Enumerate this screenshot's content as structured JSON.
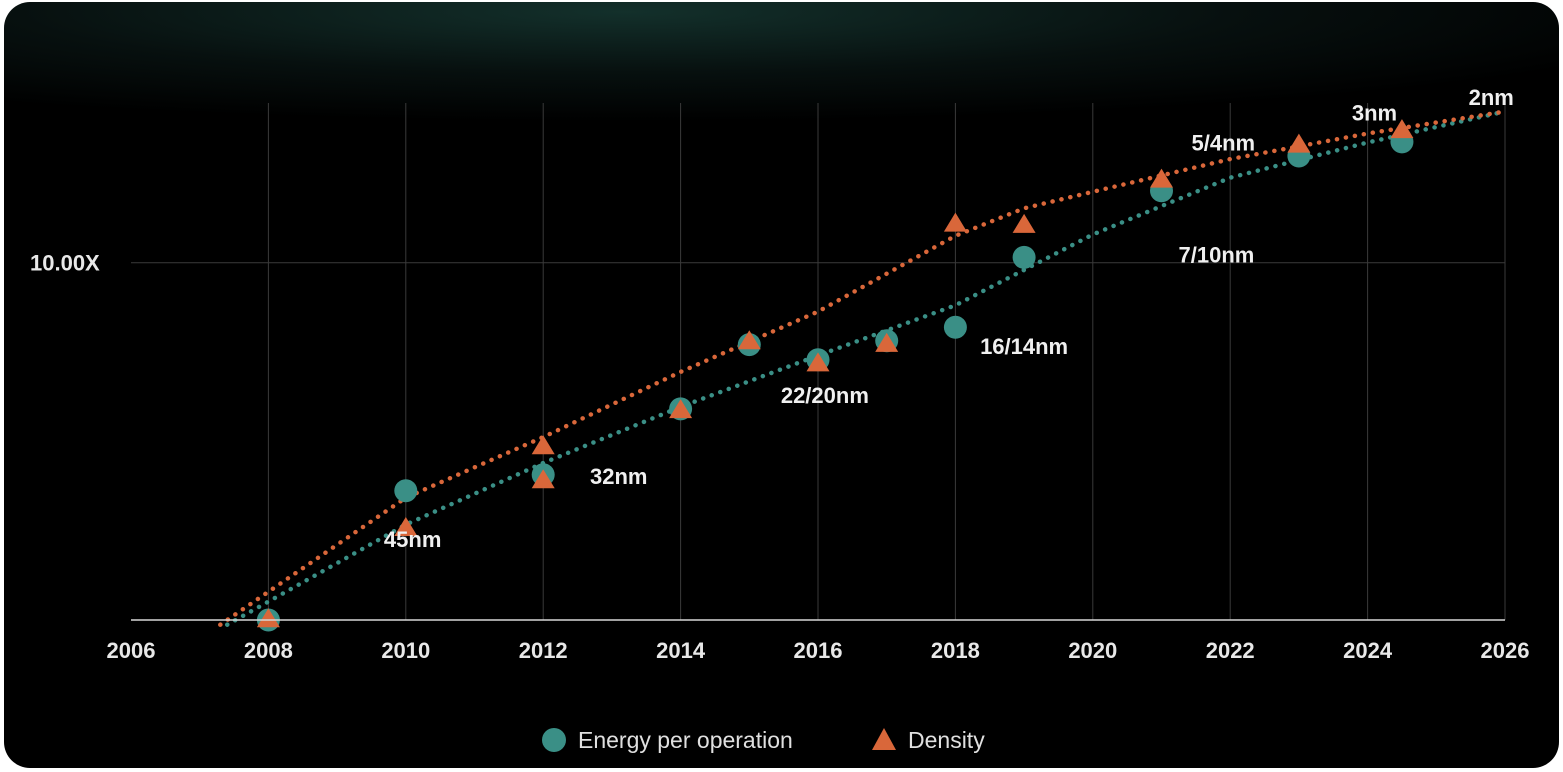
{
  "chart_data": {
    "type": "scatter",
    "xlim": [
      2006,
      2026
    ],
    "x_ticks": [
      2006,
      2008,
      2010,
      2012,
      2014,
      2016,
      2018,
      2020,
      2022,
      2024,
      2026
    ],
    "y_scale": "log",
    "ylim": [
      1,
      28
    ],
    "y_tick_labels": [
      {
        "value": 10,
        "label": "10.00X"
      }
    ],
    "grid": true,
    "legend_position": "bottom-center",
    "colors": {
      "energy": "#3a8f86",
      "density": "#d9673a"
    },
    "series": [
      {
        "name": "Energy per operation",
        "marker": "circle",
        "points": [
          [
            2008,
            1.0
          ],
          [
            2010,
            2.3
          ],
          [
            2012,
            2.55
          ],
          [
            2014,
            3.9
          ],
          [
            2015,
            5.9
          ],
          [
            2016,
            5.35
          ],
          [
            2017,
            6.05
          ],
          [
            2018,
            6.6
          ],
          [
            2019,
            10.35
          ],
          [
            2021,
            15.9
          ],
          [
            2023,
            19.9
          ],
          [
            2024.5,
            21.8
          ]
        ],
        "trend": [
          [
            2007.4,
            0.97
          ],
          [
            2010,
            1.85
          ],
          [
            2012,
            2.75
          ],
          [
            2014,
            3.95
          ],
          [
            2016,
            5.5
          ],
          [
            2018,
            7.6
          ],
          [
            2020,
            12.0
          ],
          [
            2022,
            17.3
          ],
          [
            2024,
            21.7
          ],
          [
            2026,
            26.5
          ]
        ]
      },
      {
        "name": "Density",
        "marker": "triangle",
        "points": [
          [
            2008,
            1.0
          ],
          [
            2010,
            1.8
          ],
          [
            2012,
            3.05
          ],
          [
            2012,
            2.45
          ],
          [
            2014,
            3.85
          ],
          [
            2015,
            6.0
          ],
          [
            2016,
            5.2
          ],
          [
            2017,
            5.9
          ],
          [
            2018,
            12.8
          ],
          [
            2019,
            12.7
          ],
          [
            2021,
            17.0
          ],
          [
            2023,
            21.3
          ],
          [
            2024.5,
            23.4
          ]
        ],
        "trend": [
          [
            2007.3,
            0.97
          ],
          [
            2010,
            2.2
          ],
          [
            2012,
            3.25
          ],
          [
            2014,
            4.95
          ],
          [
            2016,
            7.3
          ],
          [
            2018,
            11.9
          ],
          [
            2019,
            14.2
          ],
          [
            2020,
            15.8
          ],
          [
            2022,
            19.5
          ],
          [
            2024,
            23.0
          ],
          [
            2026,
            26.5
          ]
        ]
      }
    ],
    "annotations": [
      {
        "text": "45nm",
        "x": 2010.1,
        "y": 1.6
      },
      {
        "text": "32nm",
        "x": 2013.1,
        "y": 2.4
      },
      {
        "text": "22/20nm",
        "x": 2016.1,
        "y": 4.05
      },
      {
        "text": "16/14nm",
        "x": 2019.0,
        "y": 5.55
      },
      {
        "text": "7/10nm",
        "x": 2021.8,
        "y": 10.0
      },
      {
        "text": "5/4nm",
        "x": 2021.9,
        "y": 20.6
      },
      {
        "text": "3nm",
        "x": 2024.1,
        "y": 25.0
      },
      {
        "text": "2nm",
        "x": 2025.8,
        "y": 27.6
      }
    ]
  }
}
